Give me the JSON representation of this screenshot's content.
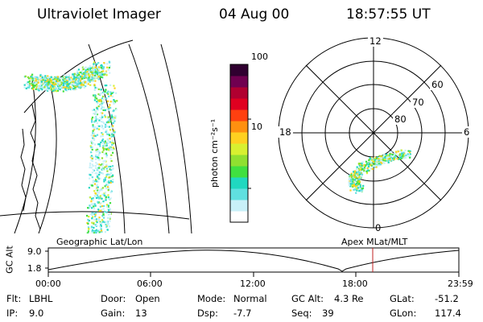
{
  "header": {
    "instrument": "Ultraviolet Imager",
    "date": "04 Aug 00",
    "time": "18:57:55 UT"
  },
  "colorbar": {
    "unit_label": "photon cm⁻²s⁻¹",
    "tick_high": "100",
    "tick_low": "10",
    "colors": [
      "#ffffff",
      "#c8f0f8",
      "#60e0e0",
      "#20d8c0",
      "#40e040",
      "#90e030",
      "#d8f030",
      "#ffd020",
      "#ff9010",
      "#ff4010",
      "#e00020",
      "#b00030",
      "#700050",
      "#300030"
    ]
  },
  "polar": {
    "mlt_top": "12",
    "mlt_left": "18",
    "mlt_right": "6",
    "mlt_bottom": "0",
    "lat_60": "60",
    "lat_70": "70",
    "lat_80": "80"
  },
  "captions": {
    "left": "Geographic Lat/Lon",
    "right": "Apex MLat/MLT"
  },
  "timeline": {
    "ylabel": "GC Alt",
    "y_high": "9.0",
    "y_low": "1.8",
    "ticks": [
      "00:00",
      "06:00",
      "12:00",
      "18:00",
      "23:59"
    ]
  },
  "info": {
    "flt_label": "Flt:",
    "flt_value": "LBHL",
    "ip_label": "IP:",
    "ip_value": "9.0",
    "door_label": "Door:",
    "door_value": "Open",
    "gain_label": "Gain:",
    "gain_value": "13",
    "mode_label": "Mode:",
    "mode_value": "Normal",
    "dsp_label": "Dsp:",
    "dsp_value": "-7.7",
    "gcalt_label": "GC Alt:",
    "gcalt_value": "4.3 Re",
    "seq_label": "Seq:",
    "seq_value": "39",
    "glat_label": "GLat:",
    "glat_value": "-51.2",
    "glon_label": "GLon:",
    "glon_value": "117.4"
  }
}
